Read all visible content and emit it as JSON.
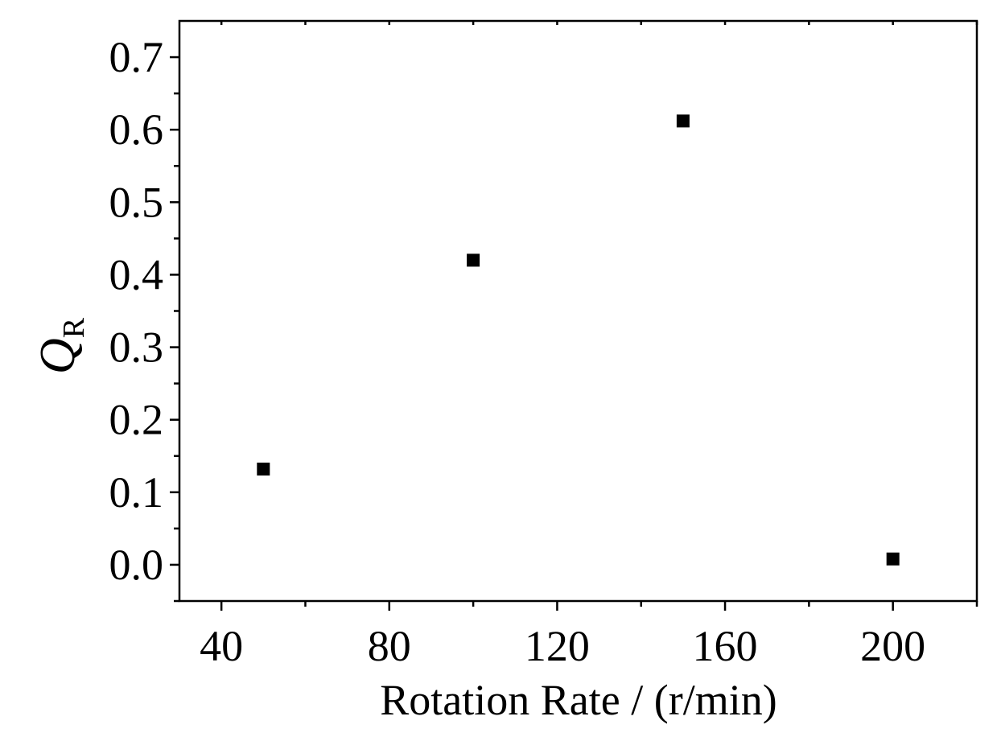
{
  "chart_data": {
    "type": "scatter",
    "title": "",
    "xlabel": "Rotation Rate / (r/min)",
    "ylabel": {
      "symbol": "Q",
      "subscript": "R"
    },
    "x": [
      50,
      100,
      150,
      200
    ],
    "y": [
      0.132,
      0.42,
      0.612,
      0.008
    ],
    "xlim": [
      30,
      220
    ],
    "ylim": [
      -0.05,
      0.75
    ],
    "xticks": [
      40,
      80,
      120,
      160,
      200
    ],
    "xtick_labels": [
      "40",
      "80",
      "120",
      "160",
      "200"
    ],
    "xminor": [
      60,
      100,
      140,
      180,
      220
    ],
    "yticks": [
      0.0,
      0.1,
      0.2,
      0.3,
      0.4,
      0.5,
      0.6,
      0.7
    ],
    "ytick_labels": [
      "0.0",
      "0.1",
      "0.2",
      "0.3",
      "0.4",
      "0.5",
      "0.6",
      "0.7"
    ],
    "yminor": [
      -0.05,
      0.05,
      0.15,
      0.25,
      0.35,
      0.45,
      0.55,
      0.65
    ],
    "marker": "square",
    "marker_color": "#000000",
    "grid": false,
    "legend": "none"
  }
}
